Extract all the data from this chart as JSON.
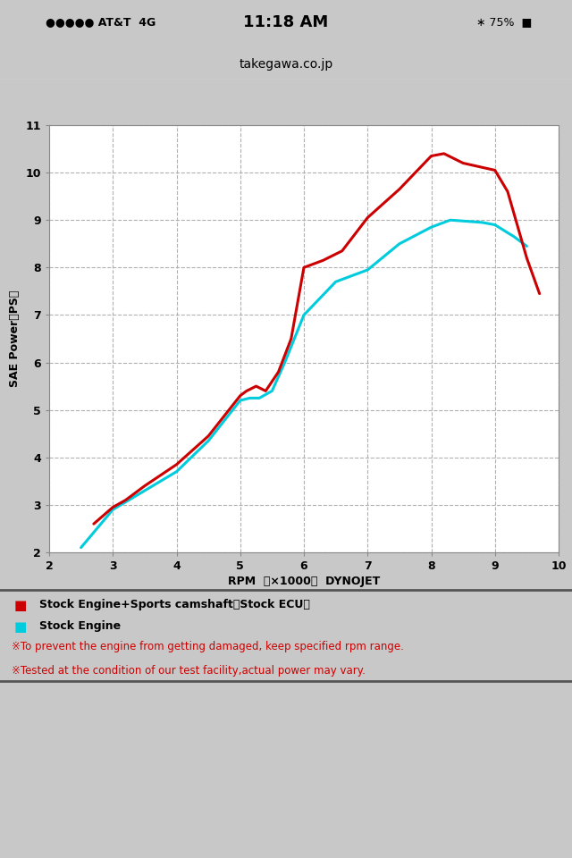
{
  "xlabel": "RPM  （×1000）  DYNOJET",
  "ylabel": "SAE Power（PS）",
  "xlim": [
    2,
    10
  ],
  "ylim": [
    2,
    11
  ],
  "xticks": [
    2,
    3,
    4,
    5,
    6,
    7,
    8,
    9,
    10
  ],
  "yticks": [
    2,
    3,
    4,
    5,
    6,
    7,
    8,
    9,
    10,
    11
  ],
  "bg_outer": "#c8c8c8",
  "bg_plot": "#ffffff",
  "grid_color": "#b0b0b0",
  "red_x": [
    2.7,
    3.0,
    3.2,
    3.5,
    4.0,
    4.5,
    5.0,
    5.1,
    5.25,
    5.4,
    5.6,
    5.8,
    6.0,
    6.3,
    6.6,
    7.0,
    7.5,
    8.0,
    8.2,
    8.5,
    9.0,
    9.2,
    9.5,
    9.7
  ],
  "red_y": [
    2.6,
    2.95,
    3.1,
    3.4,
    3.85,
    4.45,
    5.3,
    5.4,
    5.5,
    5.4,
    5.8,
    6.5,
    8.0,
    8.15,
    8.35,
    9.05,
    9.65,
    10.35,
    10.4,
    10.2,
    10.05,
    9.6,
    8.2,
    7.45
  ],
  "cyan_x": [
    2.5,
    3.0,
    3.5,
    4.0,
    4.5,
    5.0,
    5.15,
    5.3,
    5.5,
    5.7,
    6.0,
    6.5,
    7.0,
    7.5,
    8.0,
    8.3,
    8.8,
    9.0,
    9.3,
    9.5
  ],
  "cyan_y": [
    2.1,
    2.9,
    3.3,
    3.7,
    4.35,
    5.2,
    5.25,
    5.25,
    5.4,
    6.0,
    7.0,
    7.7,
    7.95,
    8.5,
    8.85,
    9.0,
    8.95,
    8.9,
    8.65,
    8.45
  ],
  "red_color": "#cc0000",
  "cyan_color": "#00ccdd",
  "legend1_sq": "■",
  "legend1": "Stock Engine+Sports camshaft（Stock ECU）",
  "legend2_sq": "■",
  "legend2": "Stock Engine",
  "note1": "※To prevent the engine from getting damaged, keep specified rpm range.",
  "note2": "※Tested at the condition of our test facility,actual power may vary.",
  "note_color": "#cc0000",
  "legend_color": "#000000",
  "status_left": "●●●●● AT&T  4G",
  "status_center": "11:18 AM",
  "status_right": "∗ 75%  ■",
  "url": "takegawa.co.jp",
  "white_bg": "#ffffff",
  "separator_color": "#cccccc"
}
